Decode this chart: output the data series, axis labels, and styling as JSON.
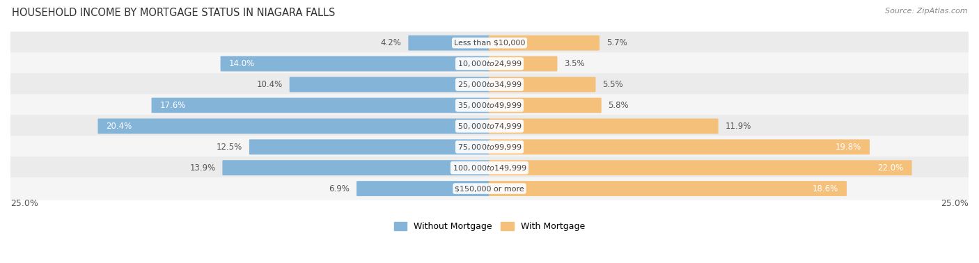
{
  "title": "HOUSEHOLD INCOME BY MORTGAGE STATUS IN NIAGARA FALLS",
  "source": "Source: ZipAtlas.com",
  "categories": [
    "Less than $10,000",
    "$10,000 to $24,999",
    "$25,000 to $34,999",
    "$35,000 to $49,999",
    "$50,000 to $74,999",
    "$75,000 to $99,999",
    "$100,000 to $149,999",
    "$150,000 or more"
  ],
  "without_mortgage": [
    4.2,
    14.0,
    10.4,
    17.6,
    20.4,
    12.5,
    13.9,
    6.9
  ],
  "with_mortgage": [
    5.7,
    3.5,
    5.5,
    5.8,
    11.9,
    19.8,
    22.0,
    18.6
  ],
  "color_without": "#85b4d9",
  "color_with": "#f5c07a",
  "background_row_odd": "#ebebeb",
  "background_row_even": "#f5f5f5",
  "max_val": 25.0,
  "legend_without": "Without Mortgage",
  "legend_with": "With Mortgage",
  "axis_label_left": "25.0%",
  "axis_label_right": "25.0%",
  "title_fontsize": 10.5,
  "source_fontsize": 8,
  "label_fontsize": 8.5,
  "category_fontsize": 8,
  "inside_label_threshold": 14.0
}
